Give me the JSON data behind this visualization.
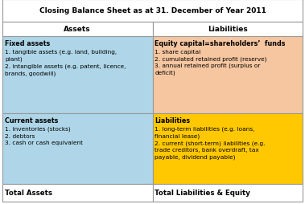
{
  "title": "Closing Balance Sheet as at 31. December of Year 2011",
  "col1_header": "Assets",
  "col2_header": "Liabilities",
  "fixed_assets_header": "Fixed assets",
  "fixed_assets_body": "1. tangible assets (e.g. land, building,\nplant)\n2. intangible assets (e.g. patent, licence,\nbrands, goodwill)",
  "equity_header": "Equity capital=shareholders’  funds",
  "equity_body": "1. share capital\n2. cumulated retained profit (reserve)\n3. annual retained profit (surplus or\ndeficit)",
  "current_assets_header": "Current assets",
  "current_assets_body": "1. inventories (stocks)\n2. debtors\n3. cash or cash equivalent",
  "liabilities_header": "Liabilities",
  "liabilities_body": "1. long-term liabilities (e.g. loans,\nfinancial lease)\n2. current (short-term) liabilities (e.g.\ntrade creditors, bank overdraft, tax\npayable, dividend payable)",
  "total_left": "Total Assets",
  "total_right": "Total Liabilities & Equity",
  "color_blue": "#aed6e8",
  "color_orange": "#f5c6a0",
  "color_yellow": "#ffc800",
  "color_white": "#ffffff",
  "color_border": "#999999",
  "figsize": [
    3.79,
    2.55
  ],
  "dpi": 100
}
